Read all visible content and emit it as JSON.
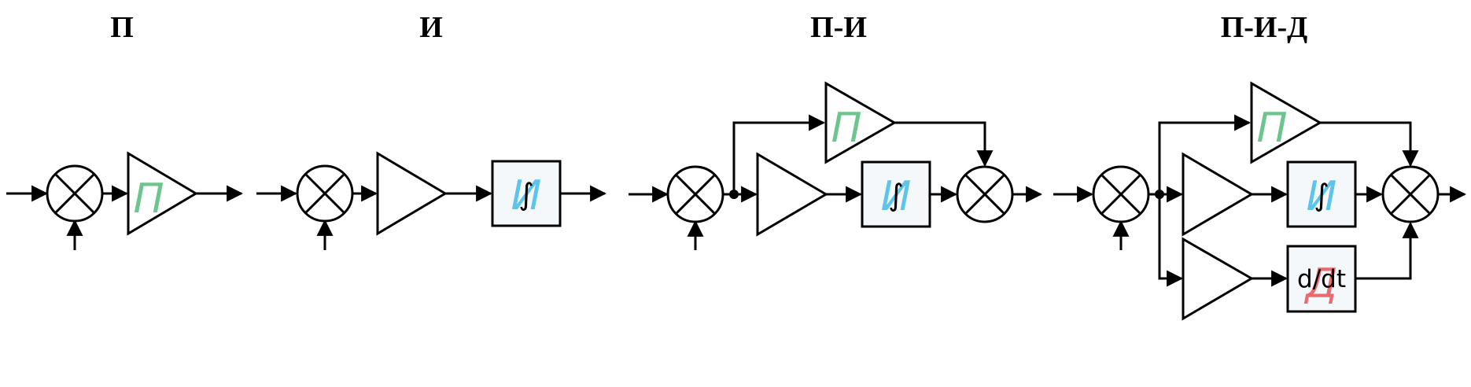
{
  "diagrams": [
    {
      "title": "П"
    },
    {
      "title": "И"
    },
    {
      "title": "П-И"
    },
    {
      "title": "П-И-Д"
    }
  ],
  "labels": {
    "proportional": "П",
    "integral": "И",
    "derivative": "Д"
  },
  "symbols": {
    "integral": "∫",
    "derivative": "d/dt"
  },
  "colors": {
    "proportional": "#6cc58d",
    "integral": "#5ec4ea",
    "derivative": "#e96a6f",
    "line": "#000000"
  }
}
